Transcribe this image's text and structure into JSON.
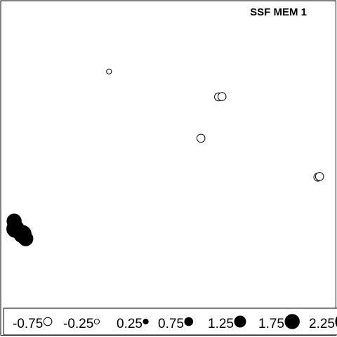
{
  "chart_data": {
    "type": "scatter",
    "title": "SSF MEM 1",
    "xlabel": "",
    "ylabel": "",
    "xlim": [
      0,
      100
    ],
    "ylim": [
      0,
      100
    ],
    "grid": false,
    "encoding": "Bubble size encodes |value|; white (open) bubbles are negative values, black (filled) bubbles are positive values.",
    "points": [
      {
        "x": 32.2,
        "y": 77.1,
        "value": -0.25
      },
      {
        "x": 65.0,
        "y": 68.8,
        "value": -0.75
      },
      {
        "x": 66.0,
        "y": 68.9,
        "value": -0.75
      },
      {
        "x": 59.7,
        "y": 55.3,
        "value": -0.75
      },
      {
        "x": 94.7,
        "y": 42.6,
        "value": -0.75
      },
      {
        "x": 95.2,
        "y": 42.8,
        "value": -0.75
      },
      {
        "x": 3.8,
        "y": 28.2,
        "value": 1.75
      },
      {
        "x": 4.2,
        "y": 25.7,
        "value": 2.25
      },
      {
        "x": 6.3,
        "y": 24.0,
        "value": 2.25
      },
      {
        "x": 7.3,
        "y": 22.5,
        "value": 1.75
      }
    ],
    "legend": {
      "position": "bottom",
      "entries": [
        {
          "label": "-0.75",
          "value": -0.75
        },
        {
          "label": "-0.25",
          "value": -0.25
        },
        {
          "label": "0.25",
          "value": 0.25
        },
        {
          "label": "0.75",
          "value": 0.75
        },
        {
          "label": "1.25",
          "value": 1.25
        },
        {
          "label": "1.75",
          "value": 1.75
        },
        {
          "label": "2.25",
          "value": 2.25
        }
      ]
    }
  },
  "colors": {
    "background": "#ffffff",
    "ink": "#000000",
    "positive_fill": "#000000",
    "negative_fill": "#ffffff"
  }
}
